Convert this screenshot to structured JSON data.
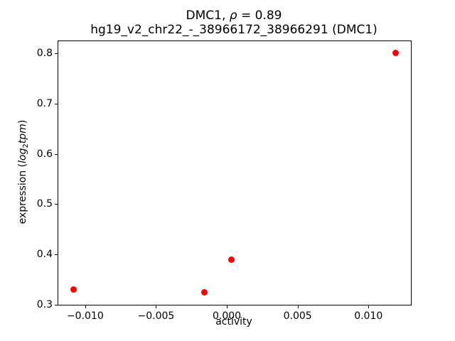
{
  "titles": {
    "line1_prefix": "DMC1, ",
    "line1_rho": "ρ",
    "line1_suffix": " = 0.89",
    "line2": "hg19_v2_chr22_-_38966172_38966291 (DMC1)"
  },
  "chart_data": {
    "type": "scatter",
    "title": "DMC1, ρ = 0.89",
    "subtitle": "hg19_v2_chr22_-_38966172_38966291 (DMC1)",
    "xlabel": "activity",
    "ylabel": "expression (log2tpm)",
    "ylabel_parts": {
      "prefix": "expression (",
      "italic1": "log",
      "sub": "2",
      "italic2": "tpm",
      "suffix": ")"
    },
    "xlim": [
      -0.0119,
      0.013
    ],
    "ylim": [
      0.3,
      0.824
    ],
    "xticks": [
      {
        "value": -0.01,
        "label": "−0.010"
      },
      {
        "value": -0.005,
        "label": "−0.005"
      },
      {
        "value": 0.0,
        "label": "0.000"
      },
      {
        "value": 0.005,
        "label": "0.005"
      },
      {
        "value": 0.01,
        "label": "0.010"
      }
    ],
    "yticks": [
      {
        "value": 0.3,
        "label": "0.3"
      },
      {
        "value": 0.4,
        "label": "0.4"
      },
      {
        "value": 0.5,
        "label": "0.5"
      },
      {
        "value": 0.6,
        "label": "0.6"
      },
      {
        "value": 0.7,
        "label": "0.7"
      },
      {
        "value": 0.8,
        "label": "0.8"
      }
    ],
    "points": [
      {
        "x": -0.0108,
        "y": 0.33
      },
      {
        "x": -0.0016,
        "y": 0.325
      },
      {
        "x": 0.0003,
        "y": 0.389
      },
      {
        "x": 0.0119,
        "y": 0.801
      }
    ],
    "marker_color": "#ff0000",
    "marker_size_px": 9,
    "grid": false,
    "legend": "none",
    "background_color": "#ffffff",
    "axis_color": "#000000"
  }
}
